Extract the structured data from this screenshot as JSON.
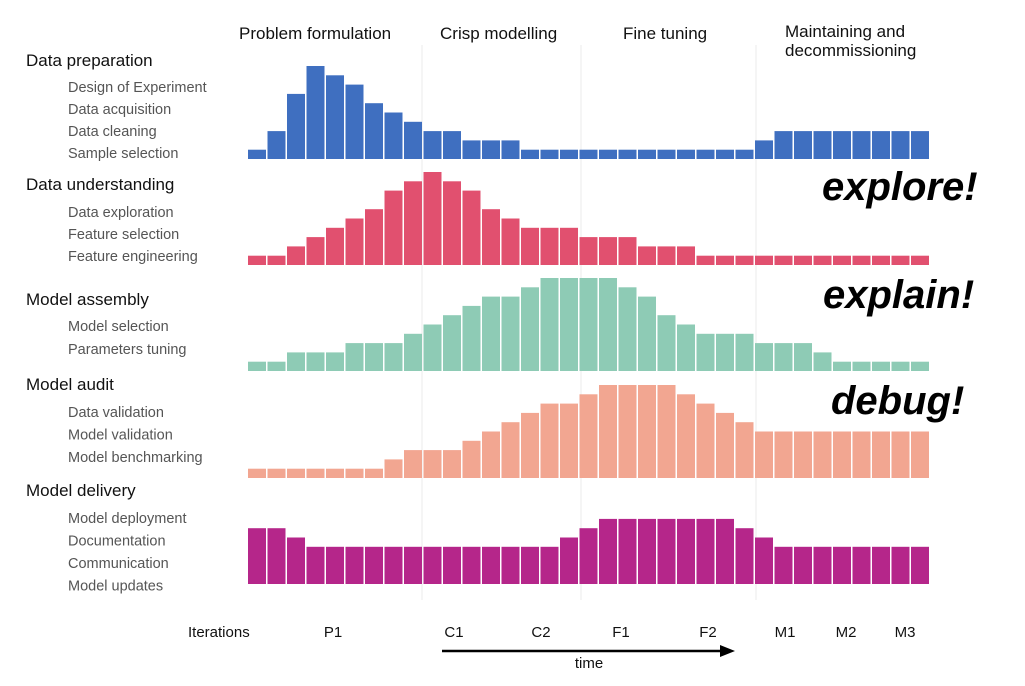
{
  "chart_data": {
    "type": "bar",
    "title": "",
    "xlabel": "time",
    "phases": [
      "Problem formulation",
      "Crisp modelling",
      "Fine tuning",
      "Maintaining and decommissioning"
    ],
    "iterations_label": "Iterations",
    "iterations": [
      "P1",
      "C1",
      "C2",
      "F1",
      "F2",
      "M1",
      "M2",
      "M3"
    ],
    "time_label": "time",
    "series": [
      {
        "name": "Data preparation",
        "subitems": [
          "Design of Experiment",
          "Data acquisition",
          "Data cleaning",
          "Sample selection"
        ],
        "color": "#3f6fc0",
        "values": [
          1,
          3,
          7,
          10,
          9,
          8,
          6,
          5,
          4,
          3,
          3,
          2,
          2,
          2,
          1,
          1,
          1,
          1,
          1,
          1,
          1,
          1,
          1,
          1,
          1,
          1,
          2,
          3,
          3,
          3,
          3,
          3,
          3,
          3,
          3
        ]
      },
      {
        "name": "Data understanding",
        "subitems": [
          "Data exploration",
          "Feature selection",
          "Feature engineering"
        ],
        "color": "#e1506f",
        "values": [
          1,
          1,
          2,
          3,
          4,
          5,
          6,
          8,
          9,
          10,
          9,
          8,
          6,
          5,
          4,
          4,
          4,
          3,
          3,
          3,
          2,
          2,
          2,
          1,
          1,
          1,
          1,
          1,
          1,
          1,
          1,
          1,
          1,
          1,
          1
        ],
        "annotation": "explore!"
      },
      {
        "name": "Model assembly",
        "subitems": [
          "Model selection",
          "Parameters tuning"
        ],
        "color": "#8ecbb5",
        "values": [
          1,
          1,
          2,
          2,
          2,
          3,
          3,
          3,
          4,
          5,
          6,
          7,
          8,
          8,
          9,
          10,
          10,
          10,
          10,
          9,
          8,
          6,
          5,
          4,
          4,
          4,
          3,
          3,
          3,
          2,
          1,
          1,
          1,
          1,
          1
        ],
        "annotation": "explain!"
      },
      {
        "name": "Model audit",
        "subitems": [
          "Data validation",
          "Model validation",
          "Model benchmarking"
        ],
        "color": "#f2a691",
        "values": [
          1,
          1,
          1,
          1,
          1,
          1,
          1,
          2,
          3,
          3,
          3,
          4,
          5,
          6,
          7,
          8,
          8,
          9,
          10,
          10,
          10,
          10,
          9,
          8,
          7,
          6,
          5,
          5,
          5,
          5,
          5,
          5,
          5,
          5,
          5
        ],
        "annotation": "debug!"
      },
      {
        "name": "Model delivery",
        "subitems": [
          "Model deployment",
          "Documentation",
          "Communication",
          "Model updates"
        ],
        "color": "#b5268a",
        "values": [
          6,
          6,
          5,
          4,
          4,
          4,
          4,
          4,
          4,
          4,
          4,
          4,
          4,
          4,
          4,
          4,
          5,
          6,
          7,
          7,
          7,
          7,
          7,
          7,
          7,
          6,
          5,
          4,
          4,
          4,
          4,
          4,
          4,
          4,
          4
        ]
      }
    ],
    "ylim": [
      0,
      10
    ],
    "grid": false,
    "legend": "none"
  }
}
